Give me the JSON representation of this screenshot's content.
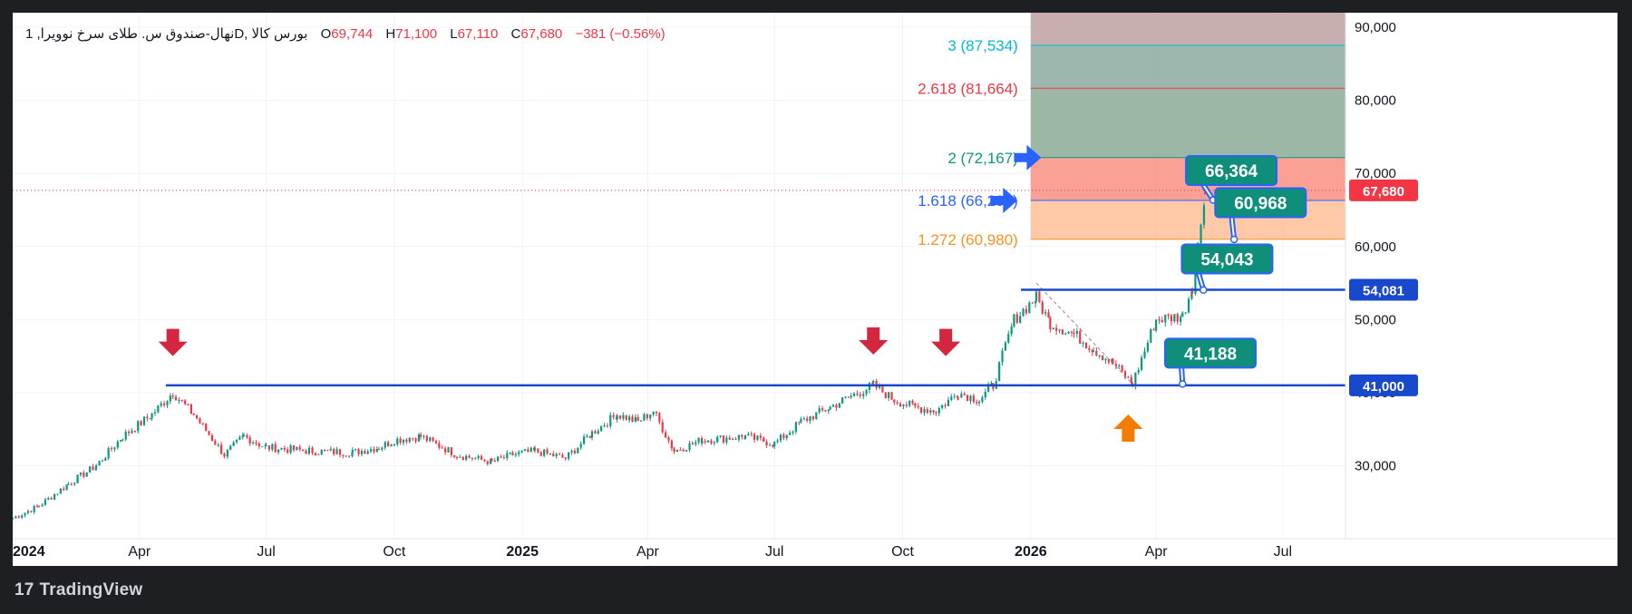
{
  "header": {
    "symbol": "نهال-صندوق س. طلای سرخ نوویرا, 1D, بورس کالا",
    "open_label": "O",
    "open": "69,744",
    "high_label": "H",
    "high": "71,100",
    "low_label": "L",
    "low": "67,110",
    "close_label": "C",
    "close": "67,680",
    "change": "−381 (−0.56%)"
  },
  "brand": {
    "logo": "17",
    "name": "TradingView"
  },
  "colors": {
    "up": "#089981",
    "down": "#f23645",
    "hline": "#1848cc",
    "callout": "#0f8f7a",
    "callout_border": "#2962ff",
    "arrow_down": "#d5263f",
    "arrow_up": "#f57c00",
    "arrow_right": "#2962ff"
  },
  "chart_data": {
    "type": "candlestick",
    "x_axis": {
      "start": "2024-01-01",
      "end": "2026-08-15",
      "ticks": [
        {
          "date": "2024-01-01",
          "label": "2024",
          "bold": true
        },
        {
          "date": "2024-04-01",
          "label": "Apr"
        },
        {
          "date": "2024-07-01",
          "label": "Jul"
        },
        {
          "date": "2024-10-01",
          "label": "Oct"
        },
        {
          "date": "2025-01-01",
          "label": "2025",
          "bold": true
        },
        {
          "date": "2025-04-01",
          "label": "Apr"
        },
        {
          "date": "2025-07-01",
          "label": "Jul"
        },
        {
          "date": "2025-10-01",
          "label": "Oct"
        },
        {
          "date": "2026-01-01",
          "label": "2026",
          "bold": true
        },
        {
          "date": "2026-04-01",
          "label": "Apr"
        },
        {
          "date": "2026-07-01",
          "label": "Jul"
        }
      ]
    },
    "y_axis": {
      "min": 20000,
      "max": 92000,
      "ticks": [
        {
          "value": 30000,
          "label": "30,000"
        },
        {
          "value": 40000,
          "label": "40,000"
        },
        {
          "value": 50000,
          "label": "50,000"
        },
        {
          "value": 60000,
          "label": "60,000"
        },
        {
          "value": 70000,
          "label": "70,000"
        },
        {
          "value": 80000,
          "label": "80,000"
        },
        {
          "value": 90000,
          "label": "90,000"
        }
      ]
    },
    "price_path": [
      [
        "2024-01-01",
        22800
      ],
      [
        "2024-01-20",
        24500
      ],
      [
        "2024-02-10",
        27500
      ],
      [
        "2024-03-01",
        30000
      ],
      [
        "2024-03-20",
        34000
      ],
      [
        "2024-04-10",
        37000
      ],
      [
        "2024-04-25",
        40000
      ],
      [
        "2024-05-10",
        37000
      ],
      [
        "2024-06-01",
        31500
      ],
      [
        "2024-06-15",
        34000
      ],
      [
        "2024-07-01",
        32500
      ],
      [
        "2024-08-01",
        32000
      ],
      [
        "2024-09-01",
        31800
      ],
      [
        "2024-09-20",
        32500
      ],
      [
        "2024-10-01",
        33500
      ],
      [
        "2024-10-20",
        34000
      ],
      [
        "2024-11-15",
        31500
      ],
      [
        "2024-12-10",
        30500
      ],
      [
        "2024-12-25",
        31500
      ],
      [
        "2025-01-10",
        32000
      ],
      [
        "2025-02-01",
        31000
      ],
      [
        "2025-02-20",
        34500
      ],
      [
        "2025-03-10",
        37000
      ],
      [
        "2025-03-25",
        36000
      ],
      [
        "2025-04-05",
        37500
      ],
      [
        "2025-04-20",
        32000
      ],
      [
        "2025-05-10",
        33500
      ],
      [
        "2025-06-10",
        34000
      ],
      [
        "2025-07-01",
        33000
      ],
      [
        "2025-07-20",
        36000
      ],
      [
        "2025-08-10",
        38000
      ],
      [
        "2025-08-25",
        39500
      ],
      [
        "2025-09-10",
        41000
      ],
      [
        "2025-09-25",
        39000
      ],
      [
        "2025-10-10",
        38000
      ],
      [
        "2025-10-25",
        37500
      ],
      [
        "2025-11-10",
        40000
      ],
      [
        "2025-11-25",
        39000
      ],
      [
        "2025-12-05",
        41000
      ],
      [
        "2025-12-20",
        50000
      ],
      [
        "2026-01-05",
        53000
      ],
      [
        "2026-01-15",
        49500
      ],
      [
        "2026-02-01",
        48000
      ],
      [
        "2026-02-15",
        46000
      ],
      [
        "2026-03-01",
        44000
      ],
      [
        "2026-03-15",
        41200
      ],
      [
        "2026-04-01",
        50000
      ],
      [
        "2026-04-20",
        50500
      ],
      [
        "2026-04-27",
        54500
      ],
      [
        "2026-05-01",
        60000
      ],
      [
        "2026-05-06",
        67680
      ]
    ],
    "last_candle": {
      "date": "2026-05-06",
      "open": 69744,
      "high": 71100,
      "low": 67110,
      "close": 67680
    },
    "horizontal_levels": [
      {
        "value": 54081,
        "label": "54,081"
      },
      {
        "value": 41000,
        "label": "41,000"
      }
    ],
    "last_price": {
      "value": 67680,
      "label": "67,680"
    },
    "fib_extension": {
      "start_date": "2026-01-01",
      "end_date": "2026-08-15",
      "levels": [
        {
          "ratio": "1.272",
          "value": 60980,
          "label": "1.272 (60,980)",
          "color": "#f7931e"
        },
        {
          "ratio": "1.618",
          "value": 66297,
          "label": "1.618 (66,297)",
          "color": "#2962ff"
        },
        {
          "ratio": "2",
          "value": 72167,
          "label": "2 (72,167)",
          "color": "#089981"
        },
        {
          "ratio": "2.618",
          "value": 81664,
          "label": "2.618 (81,664)",
          "color": "#f23645"
        },
        {
          "ratio": "3",
          "value": 87534,
          "label": "3 (87,534)",
          "color": "#00bcd4"
        }
      ],
      "bands": [
        {
          "from": 60980,
          "to": 66297,
          "color": "rgba(255,170,120,0.65)"
        },
        {
          "from": 66297,
          "to": 72167,
          "color": "rgba(250,128,114,0.75)"
        },
        {
          "from": 72167,
          "to": 81664,
          "color": "rgba(140,170,150,0.85)"
        },
        {
          "from": 81664,
          "to": 87534,
          "color": "rgba(140,170,160,0.85)"
        },
        {
          "from": 87534,
          "to": 92000,
          "color": "rgba(190,160,160,0.85)"
        }
      ]
    },
    "callouts": [
      {
        "label": "66,364",
        "anchor_date": "2026-05-12",
        "anchor_value": 66364,
        "box_date": "2026-05-25",
        "box_value": 70400
      },
      {
        "label": "60,968",
        "anchor_date": "2026-05-27",
        "anchor_value": 60968,
        "box_date": "2026-06-15",
        "box_value": 66000
      },
      {
        "label": "54,043",
        "anchor_date": "2026-05-05",
        "anchor_value": 54043,
        "box_date": "2026-05-22",
        "box_value": 58300
      },
      {
        "label": "41,188",
        "anchor_date": "2026-04-20",
        "anchor_value": 41188,
        "box_date": "2026-05-10",
        "box_value": 45400
      }
    ],
    "markers": [
      {
        "shape": "arrow-down",
        "date": "2024-04-25",
        "value": 45000
      },
      {
        "shape": "arrow-down",
        "date": "2025-09-10",
        "value": 45200
      },
      {
        "shape": "arrow-down",
        "date": "2025-11-01",
        "value": 45000
      },
      {
        "shape": "arrow-up",
        "date": "2026-03-12",
        "value": 37000
      },
      {
        "shape": "arrow-right",
        "date": "2025-12-20",
        "value": 72167
      },
      {
        "shape": "arrow-right",
        "date": "2025-12-03",
        "value": 66297
      }
    ],
    "trend_line": {
      "from_date": "2026-01-05",
      "from_value": 55000,
      "to_date": "2026-03-15",
      "to_value": 41200
    }
  }
}
